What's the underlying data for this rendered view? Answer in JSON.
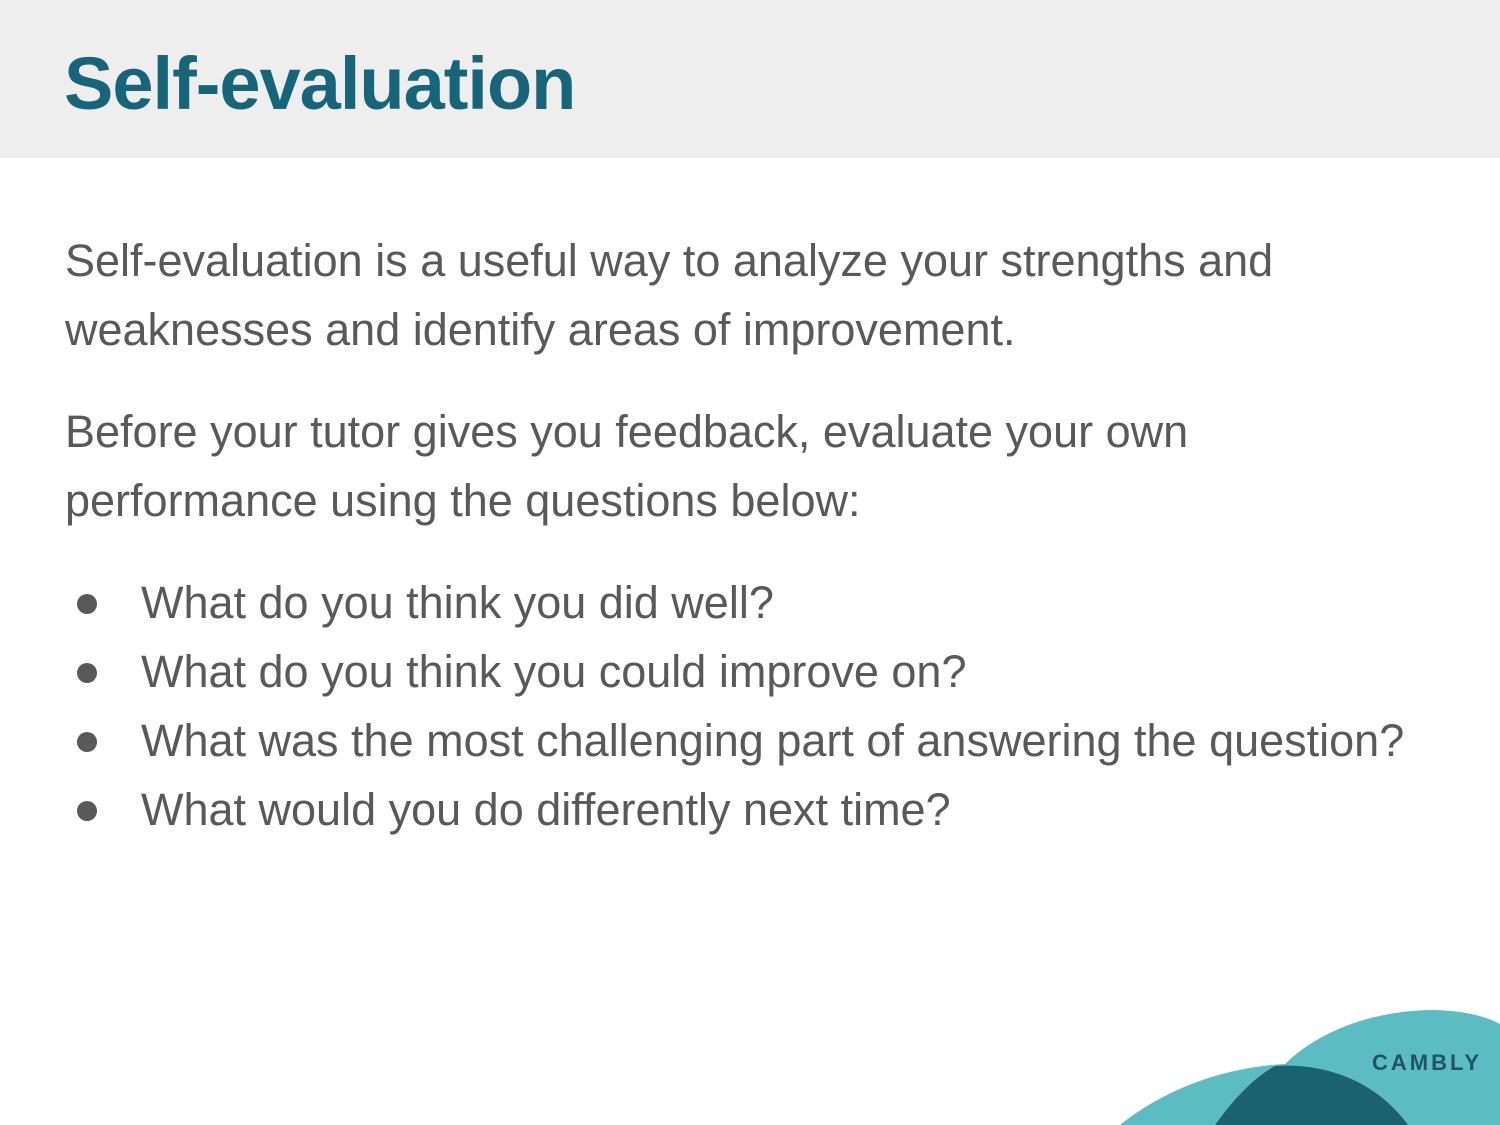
{
  "slide": {
    "title": "Self-evaluation",
    "paragraphs": [
      "Self-evaluation is a useful way to analyze your strengths and weaknesses and identify areas of improvement.",
      "Before your tutor gives you feedback, evaluate your own performance using the questions below:"
    ],
    "questions": [
      "What do you think you did well?",
      "What do you think you could improve on?",
      "What was the most challenging part of answering the question?",
      "What would you do differently next time?"
    ]
  },
  "branding": {
    "logo_text": "CAMBLY"
  },
  "colors": {
    "title": "#17657a",
    "header_bg": "#eeeeee",
    "body_text": "#595959",
    "wave_light": "#5bbcc3",
    "wave_dark": "#1b6172"
  }
}
